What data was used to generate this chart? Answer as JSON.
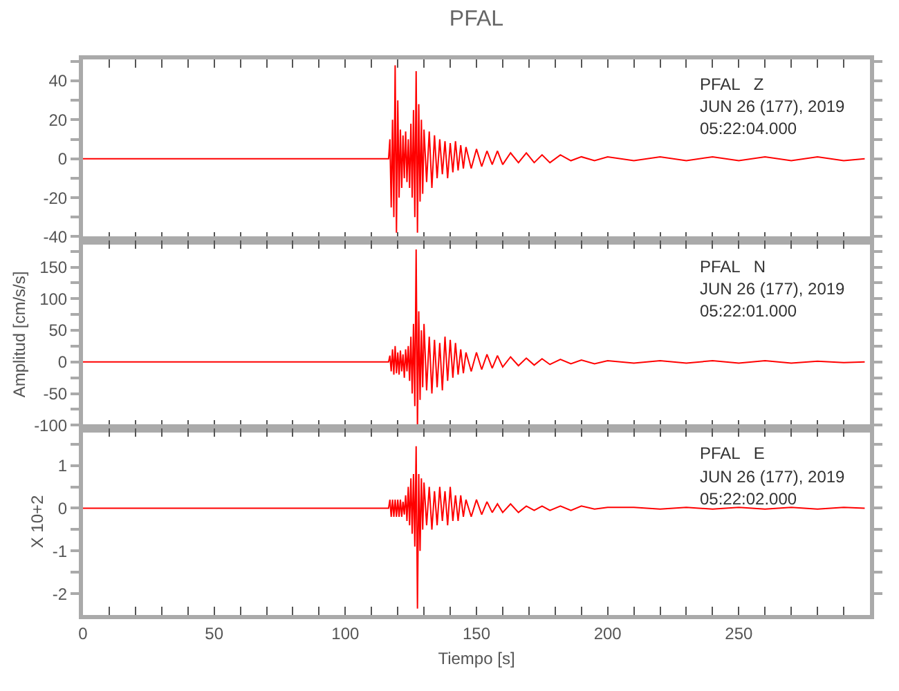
{
  "chart_data": [
    {
      "type": "line",
      "title": "PFAL",
      "annotations": [
        "PFAL   Z",
        "JUN 26 (177), 2019",
        "05:22:04.000"
      ],
      "x": [
        0,
        116.5,
        117,
        117.5,
        118,
        118.5,
        119,
        119.5,
        120,
        120.5,
        121,
        121.5,
        122,
        122.5,
        123,
        123.5,
        124,
        124.5,
        125,
        125.5,
        126,
        126.5,
        127,
        127.5,
        128,
        128.5,
        129,
        129.5,
        130,
        131,
        132,
        133,
        134,
        135,
        136,
        137,
        138,
        139,
        140,
        141,
        142,
        143,
        144,
        145,
        146,
        148,
        150,
        152,
        154,
        156,
        158,
        160,
        163,
        166,
        169,
        172,
        175,
        178,
        182,
        186,
        190,
        195,
        200,
        210,
        220,
        230,
        240,
        250,
        260,
        270,
        280,
        290,
        298
      ],
      "series": [
        {
          "color": "#ff0000",
          "values": [
            0,
            0,
            10,
            -25,
            20,
            -30,
            48,
            -38,
            30,
            -20,
            15,
            -15,
            12,
            -10,
            14,
            -12,
            10,
            -15,
            18,
            -20,
            25,
            -30,
            45,
            -38,
            28,
            -22,
            20,
            -18,
            15,
            -12,
            14,
            -15,
            12,
            -10,
            10,
            -8,
            9,
            -10,
            8,
            -7,
            9,
            -6,
            7,
            -5,
            6,
            -5,
            5,
            -4,
            4,
            -3,
            4,
            -3,
            3,
            -2,
            3,
            -2,
            2,
            -2,
            2,
            -1,
            1,
            -1,
            1,
            -1,
            1,
            -1,
            1,
            -1,
            1,
            -1,
            1,
            -1,
            0
          ]
        }
      ],
      "xlim": [
        0,
        300
      ],
      "xticks": [
        0,
        {
          "value": 10,
          "label": null
        },
        {
          "value": 20,
          "label": null
        },
        {
          "value": 30,
          "label": null
        },
        {
          "value": 40,
          "label": null
        },
        50,
        {
          "value": 60,
          "label": null
        },
        {
          "value": 70,
          "label": null
        },
        {
          "value": 80,
          "label": null
        },
        {
          "value": 90,
          "label": null
        },
        100,
        {
          "value": 110,
          "label": null
        },
        {
          "value": 120,
          "label": null
        },
        {
          "value": 130,
          "label": null
        },
        {
          "value": 140,
          "label": null
        },
        150,
        {
          "value": 160,
          "label": null
        },
        {
          "value": 170,
          "label": null
        },
        {
          "value": 180,
          "label": null
        },
        {
          "value": 190,
          "label": null
        },
        200,
        {
          "value": 210,
          "label": null
        },
        {
          "value": 220,
          "label": null
        },
        {
          "value": 230,
          "label": null
        },
        {
          "value": 240,
          "label": null
        },
        250,
        {
          "value": 260,
          "label": null
        },
        {
          "value": 270,
          "label": null
        },
        {
          "value": 280,
          "label": null
        },
        {
          "value": 290,
          "label": null
        }
      ],
      "ylim": [
        -42,
        51
      ],
      "yticks": [
        -40,
        {
          "value": -30,
          "label": null
        },
        -20,
        {
          "value": -10,
          "label": null
        },
        0,
        {
          "value": 10,
          "label": null
        },
        20,
        {
          "value": 30,
          "label": null
        },
        40,
        {
          "value": 50,
          "label": null
        }
      ],
      "tick_labels": "y",
      "line_style": "solid"
    },
    {
      "type": "line",
      "ylabel": "Amplitud [cm/s/s]",
      "annotations": [
        "PFAL   N",
        "JUN 26 (177), 2019",
        "05:22:01.000"
      ],
      "x": [
        0,
        116.5,
        117,
        117.5,
        118,
        118.5,
        119,
        119.5,
        120,
        120.5,
        121,
        121.5,
        122,
        122.5,
        123,
        123.5,
        124,
        124.5,
        125,
        125.5,
        126,
        126.5,
        127,
        127.5,
        128,
        128.5,
        129,
        129.5,
        130,
        131,
        132,
        133,
        134,
        135,
        136,
        137,
        138,
        139,
        140,
        141,
        142,
        143,
        144,
        145,
        146,
        148,
        150,
        152,
        154,
        156,
        158,
        160,
        163,
        166,
        169,
        172,
        175,
        178,
        182,
        186,
        190,
        195,
        200,
        210,
        220,
        230,
        240,
        250,
        260,
        270,
        280,
        290,
        298
      ],
      "series": [
        {
          "color": "#ff0000",
          "values": [
            0,
            0,
            10,
            -15,
            20,
            -20,
            25,
            -18,
            15,
            -20,
            18,
            -15,
            12,
            -25,
            20,
            -15,
            25,
            -30,
            40,
            -50,
            60,
            -70,
            178,
            -105,
            80,
            -60,
            50,
            -40,
            60,
            -45,
            40,
            -50,
            35,
            -40,
            30,
            -45,
            40,
            -30,
            35,
            -25,
            30,
            -20,
            20,
            -18,
            15,
            -15,
            15,
            -12,
            12,
            -10,
            10,
            -8,
            8,
            -6,
            6,
            -5,
            5,
            -4,
            4,
            -3,
            3,
            -3,
            2,
            -2,
            2,
            -2,
            2,
            -2,
            2,
            -2,
            1,
            -1,
            0
          ]
        }
      ],
      "xlim": [
        0,
        300
      ],
      "xticks": [
        0,
        {
          "value": 10,
          "label": null
        },
        {
          "value": 20,
          "label": null
        },
        {
          "value": 30,
          "label": null
        },
        {
          "value": 40,
          "label": null
        },
        50,
        {
          "value": 60,
          "label": null
        },
        {
          "value": 70,
          "label": null
        },
        {
          "value": 80,
          "label": null
        },
        {
          "value": 90,
          "label": null
        },
        100,
        {
          "value": 110,
          "label": null
        },
        {
          "value": 120,
          "label": null
        },
        {
          "value": 130,
          "label": null
        },
        {
          "value": 140,
          "label": null
        },
        150,
        {
          "value": 160,
          "label": null
        },
        {
          "value": 170,
          "label": null
        },
        {
          "value": 180,
          "label": null
        },
        {
          "value": 190,
          "label": null
        },
        200,
        {
          "value": 210,
          "label": null
        },
        {
          "value": 220,
          "label": null
        },
        {
          "value": 230,
          "label": null
        },
        {
          "value": 240,
          "label": null
        },
        250,
        {
          "value": 260,
          "label": null
        },
        {
          "value": 270,
          "label": null
        },
        {
          "value": 280,
          "label": null
        },
        {
          "value": 290,
          "label": null
        }
      ],
      "ylim": [
        -105,
        192
      ],
      "yticks": [
        -100,
        {
          "value": -75,
          "label": null
        },
        -50,
        {
          "value": -25,
          "label": null
        },
        0,
        {
          "value": 25,
          "label": null
        },
        50,
        {
          "value": 75,
          "label": null
        },
        100,
        {
          "value": 125,
          "label": null
        },
        150,
        {
          "value": 175,
          "label": null
        }
      ],
      "tick_labels": "y",
      "line_style": "solid"
    },
    {
      "type": "line",
      "xlabel": "Tiempo [s]",
      "ylabel": "X 10+2",
      "annotations": [
        "PFAL   E",
        "JUN 26 (177), 2019",
        "05:22:02.000"
      ],
      "x": [
        0,
        116.5,
        117,
        117.5,
        118,
        118.5,
        119,
        119.5,
        120,
        120.5,
        121,
        121.5,
        122,
        122.5,
        123,
        123.5,
        124,
        124.5,
        125,
        125.5,
        126,
        126.5,
        127,
        127.5,
        128,
        128.5,
        129,
        129.5,
        130,
        131,
        132,
        133,
        134,
        135,
        136,
        137,
        138,
        139,
        140,
        141,
        142,
        143,
        144,
        145,
        146,
        148,
        150,
        152,
        154,
        156,
        158,
        160,
        163,
        166,
        169,
        172,
        175,
        178,
        182,
        186,
        190,
        195,
        200,
        210,
        220,
        230,
        240,
        250,
        260,
        270,
        280,
        290,
        298
      ],
      "series": [
        {
          "color": "#ff0000",
          "values": [
            0,
            0,
            0.2,
            -0.2,
            0.2,
            -0.2,
            0.2,
            -0.2,
            0.2,
            -0.2,
            0.2,
            -0.2,
            0.15,
            -0.15,
            0.3,
            -0.3,
            0.5,
            -0.4,
            0.7,
            -0.6,
            0.8,
            -0.9,
            1.45,
            -2.35,
            0.8,
            -1.0,
            0.7,
            -0.5,
            0.6,
            -0.4,
            0.5,
            -0.5,
            0.4,
            -0.4,
            0.5,
            -0.3,
            0.4,
            -0.4,
            0.5,
            -0.3,
            0.3,
            -0.3,
            0.3,
            -0.2,
            0.2,
            -0.2,
            0.2,
            -0.15,
            0.15,
            -0.1,
            0.1,
            -0.1,
            0.1,
            -0.1,
            0.05,
            -0.05,
            0.05,
            -0.05,
            0.05,
            -0.05,
            0.05,
            -0.02,
            0.02,
            0.02,
            -0.02,
            0.02,
            -0.02,
            0.02,
            -0.02,
            0.02,
            -0.02,
            0.02,
            0
          ]
        }
      ],
      "xlim": [
        0,
        300
      ],
      "xticks": [
        0,
        {
          "value": 10,
          "label": null
        },
        {
          "value": 20,
          "label": null
        },
        {
          "value": 30,
          "label": null
        },
        {
          "value": 40,
          "label": null
        },
        50,
        {
          "value": 60,
          "label": null
        },
        {
          "value": 70,
          "label": null
        },
        {
          "value": 80,
          "label": null
        },
        {
          "value": 90,
          "label": null
        },
        100,
        {
          "value": 110,
          "label": null
        },
        {
          "value": 120,
          "label": null
        },
        {
          "value": 130,
          "label": null
        },
        {
          "value": 140,
          "label": null
        },
        150,
        {
          "value": 160,
          "label": null
        },
        {
          "value": 170,
          "label": null
        },
        {
          "value": 180,
          "label": null
        },
        {
          "value": 190,
          "label": null
        },
        200,
        {
          "value": 210,
          "label": null
        },
        {
          "value": 220,
          "label": null
        },
        {
          "value": 230,
          "label": null
        },
        {
          "value": 240,
          "label": null
        },
        250,
        {
          "value": 260,
          "label": null
        },
        {
          "value": 270,
          "label": null
        },
        {
          "value": 280,
          "label": null
        },
        {
          "value": 290,
          "label": null
        }
      ],
      "ylim": [
        -2.5,
        1.87
      ],
      "yticks": [
        -2,
        {
          "value": -1.5,
          "label": null
        },
        -1,
        {
          "value": -0.5,
          "label": null
        },
        0,
        {
          "value": 0.5,
          "label": null
        },
        1,
        {
          "value": 1.5,
          "label": null
        }
      ],
      "line_style": "solid"
    }
  ]
}
